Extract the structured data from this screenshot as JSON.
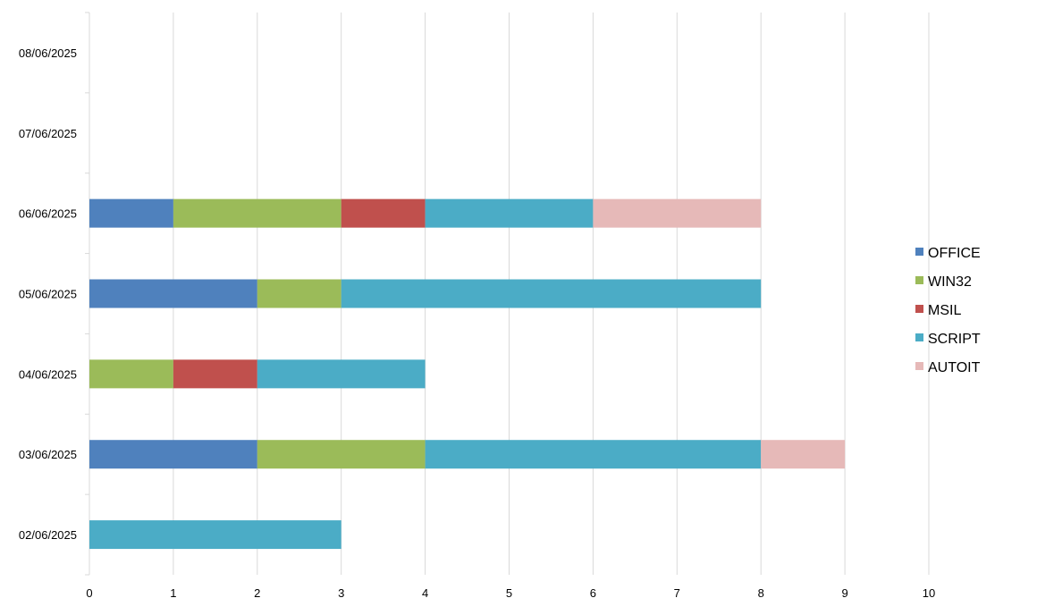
{
  "chart_data": {
    "type": "bar",
    "orientation": "horizontal",
    "stacked": true,
    "title": "",
    "xlabel": "",
    "ylabel": "",
    "xlim": [
      0,
      10
    ],
    "x_ticks": [
      0,
      1,
      2,
      3,
      4,
      5,
      6,
      7,
      8,
      9,
      10
    ],
    "grid": "vertical",
    "legend_position": "right",
    "categories": [
      "02/06/2025",
      "03/06/2025",
      "04/06/2025",
      "05/06/2025",
      "06/06/2025",
      "07/06/2025",
      "08/06/2025"
    ],
    "series": [
      {
        "name": "OFFICE",
        "color": "#4f81bd",
        "values": [
          0,
          2,
          0,
          2,
          1,
          0,
          0
        ]
      },
      {
        "name": "WIN32",
        "color": "#9bbb59",
        "values": [
          0,
          2,
          1,
          1,
          2,
          0,
          0
        ]
      },
      {
        "name": "MSIL",
        "color": "#c0504d",
        "values": [
          0,
          0,
          1,
          0,
          1,
          0,
          0
        ]
      },
      {
        "name": "SCRIPT",
        "color": "#4bacc6",
        "values": [
          3,
          4,
          2,
          5,
          2,
          0,
          0
        ]
      },
      {
        "name": "AUTOIT",
        "color": "#e6b9b8",
        "values": [
          0,
          1,
          0,
          0,
          2,
          0,
          0
        ]
      }
    ]
  }
}
